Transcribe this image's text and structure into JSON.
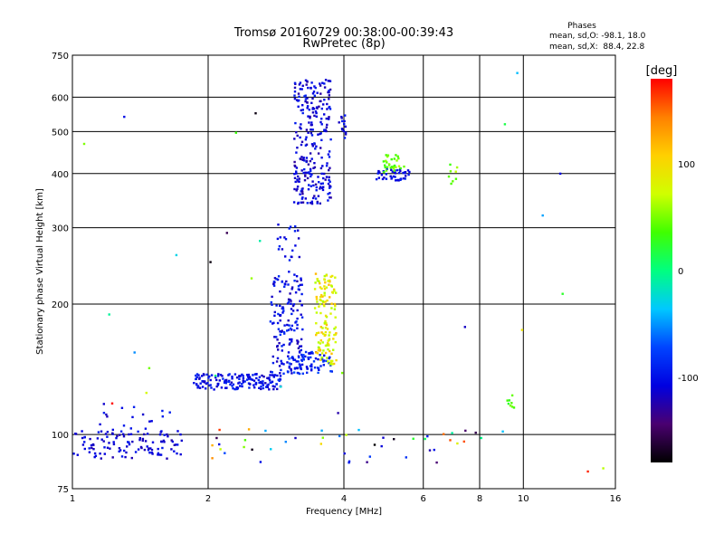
{
  "chart_data": {
    "type": "scatter",
    "title": "Tromsø 20160729 00:38:00-00:39:43",
    "subtitle": "RwPretec (8p)",
    "stats": {
      "heading": "Phases",
      "line_o": "mean, sd,O: -98.1, 18.0",
      "line_x": "mean, sd,X:  88.4, 22.8"
    },
    "xlabel": "Frequency [MHz]",
    "ylabel": "Stationary phase Virtual Height [km]",
    "x_scale": "log",
    "y_scale": "log",
    "xlim": [
      1,
      16
    ],
    "ylim": [
      75,
      750
    ],
    "x_ticks": [
      1,
      2,
      4,
      6,
      8,
      10,
      16
    ],
    "y_ticks": [
      75,
      100,
      200,
      300,
      400,
      500,
      600,
      750
    ],
    "grid": true,
    "colorbar": {
      "label": "[deg]",
      "range": [
        -180,
        180
      ],
      "ticks": [
        100,
        0,
        -100
      ],
      "colors": [
        "#000000",
        "#4a0070",
        "#0000e0",
        "#0044ff",
        "#00c8ff",
        "#00ff80",
        "#40ff00",
        "#d0ff00",
        "#ffd000",
        "#ff8000",
        "#ff0000"
      ]
    },
    "clusters": [
      {
        "x": [
          1.0,
          1.75
        ],
        "y": [
          88,
          102
        ],
        "n": 110,
        "phase": [
          -125,
          -95
        ]
      },
      {
        "x": [
          1.15,
          1.7
        ],
        "y": [
          100,
          118
        ],
        "n": 22,
        "phase": [
          -120,
          -90
        ]
      },
      {
        "x": [
          1.85,
          2.9
        ],
        "y": [
          127,
          138
        ],
        "n": 170,
        "phase": [
          -120,
          -85
        ]
      },
      {
        "x": [
          2.75,
          3.25
        ],
        "y": [
          138,
          230
        ],
        "n": 150,
        "phase": [
          -125,
          -80
        ]
      },
      {
        "x": [
          2.85,
          3.2
        ],
        "y": [
          230,
          305
        ],
        "n": 25,
        "phase": [
          -120,
          -85
        ]
      },
      {
        "x": [
          3.0,
          3.8
        ],
        "y": [
          138,
          155
        ],
        "n": 70,
        "phase": [
          -110,
          -70
        ]
      },
      {
        "x": [
          3.45,
          3.85
        ],
        "y": [
          145,
          235
        ],
        "n": 130,
        "phase": [
          60,
          120
        ]
      },
      {
        "x": [
          3.1,
          3.75
        ],
        "y": [
          340,
          660
        ],
        "n": 260,
        "phase": [
          -130,
          -90
        ]
      },
      {
        "x": [
          3.9,
          4.05
        ],
        "y": [
          480,
          545
        ],
        "n": 14,
        "phase": [
          -120,
          -90
        ]
      },
      {
        "x": [
          4.7,
          5.6
        ],
        "y": [
          385,
          410
        ],
        "n": 45,
        "phase": [
          -120,
          -90
        ]
      },
      {
        "x": [
          4.9,
          5.5
        ],
        "y": [
          400,
          445
        ],
        "n": 30,
        "phase": [
          30,
          70
        ]
      },
      {
        "x": [
          6.8,
          7.2
        ],
        "y": [
          375,
          420
        ],
        "n": 8,
        "phase": [
          30,
          70
        ]
      },
      {
        "x": [
          9.2,
          9.6
        ],
        "y": [
          115,
          125
        ],
        "n": 8,
        "phase": [
          25,
          55
        ]
      },
      {
        "x": [
          1.95,
          8.2
        ],
        "y": [
          86,
          104
        ],
        "n": 45,
        "phase": [
          -180,
          180
        ]
      },
      {
        "x": [
          1.0,
          16.0
        ],
        "y": [
          75,
          750
        ],
        "n": 30,
        "phase": [
          -180,
          180
        ]
      }
    ]
  }
}
